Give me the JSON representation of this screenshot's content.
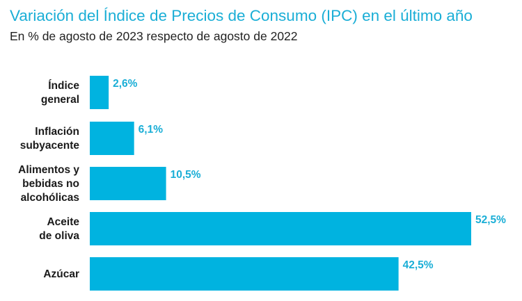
{
  "header": {
    "title": "Variación del Índice de Precios de Consumo (IPC) en el último año",
    "subtitle": "En % de agosto de 2023 respecto de agosto de 2022"
  },
  "colors": {
    "bar": "#00b3e0",
    "value_label": "#1aaed6",
    "title": "#1aaed6"
  },
  "chart_data": {
    "type": "bar",
    "orientation": "horizontal",
    "title": "Variación del Índice de Precios de Consumo (IPC) en el último año",
    "subtitle": "En % de agosto de 2023 respecto de agosto de 2022",
    "categories": [
      [
        "Índice",
        "general"
      ],
      [
        "Inflación",
        "subyacente"
      ],
      [
        "Alimentos y",
        "bebidas no",
        "alcohólicas"
      ],
      [
        "Aceite",
        "de oliva"
      ],
      [
        "Azúcar"
      ]
    ],
    "values": [
      2.6,
      6.1,
      10.5,
      52.5,
      42.5
    ],
    "value_labels": [
      "2,6%",
      "6,1%",
      "10,5%",
      "52,5%",
      "42,5%"
    ],
    "xlim": [
      0,
      52.5
    ],
    "grid": false,
    "legend": "none"
  }
}
